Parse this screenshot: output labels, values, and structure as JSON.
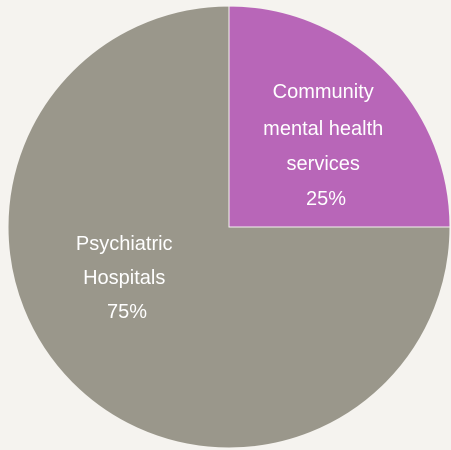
{
  "chart_data": {
    "type": "pie",
    "title": "",
    "slices": [
      {
        "label_lines": [
          "Community",
          "mental health",
          "services"
        ],
        "value": 25,
        "value_label": "25%",
        "color": "#b866b8"
      },
      {
        "label_lines": [
          "Psychiatric",
          "Hospitals"
        ],
        "value": 75,
        "value_label": "75%",
        "color": "#9a978b"
      }
    ]
  },
  "background_color": "#f5f3ef"
}
